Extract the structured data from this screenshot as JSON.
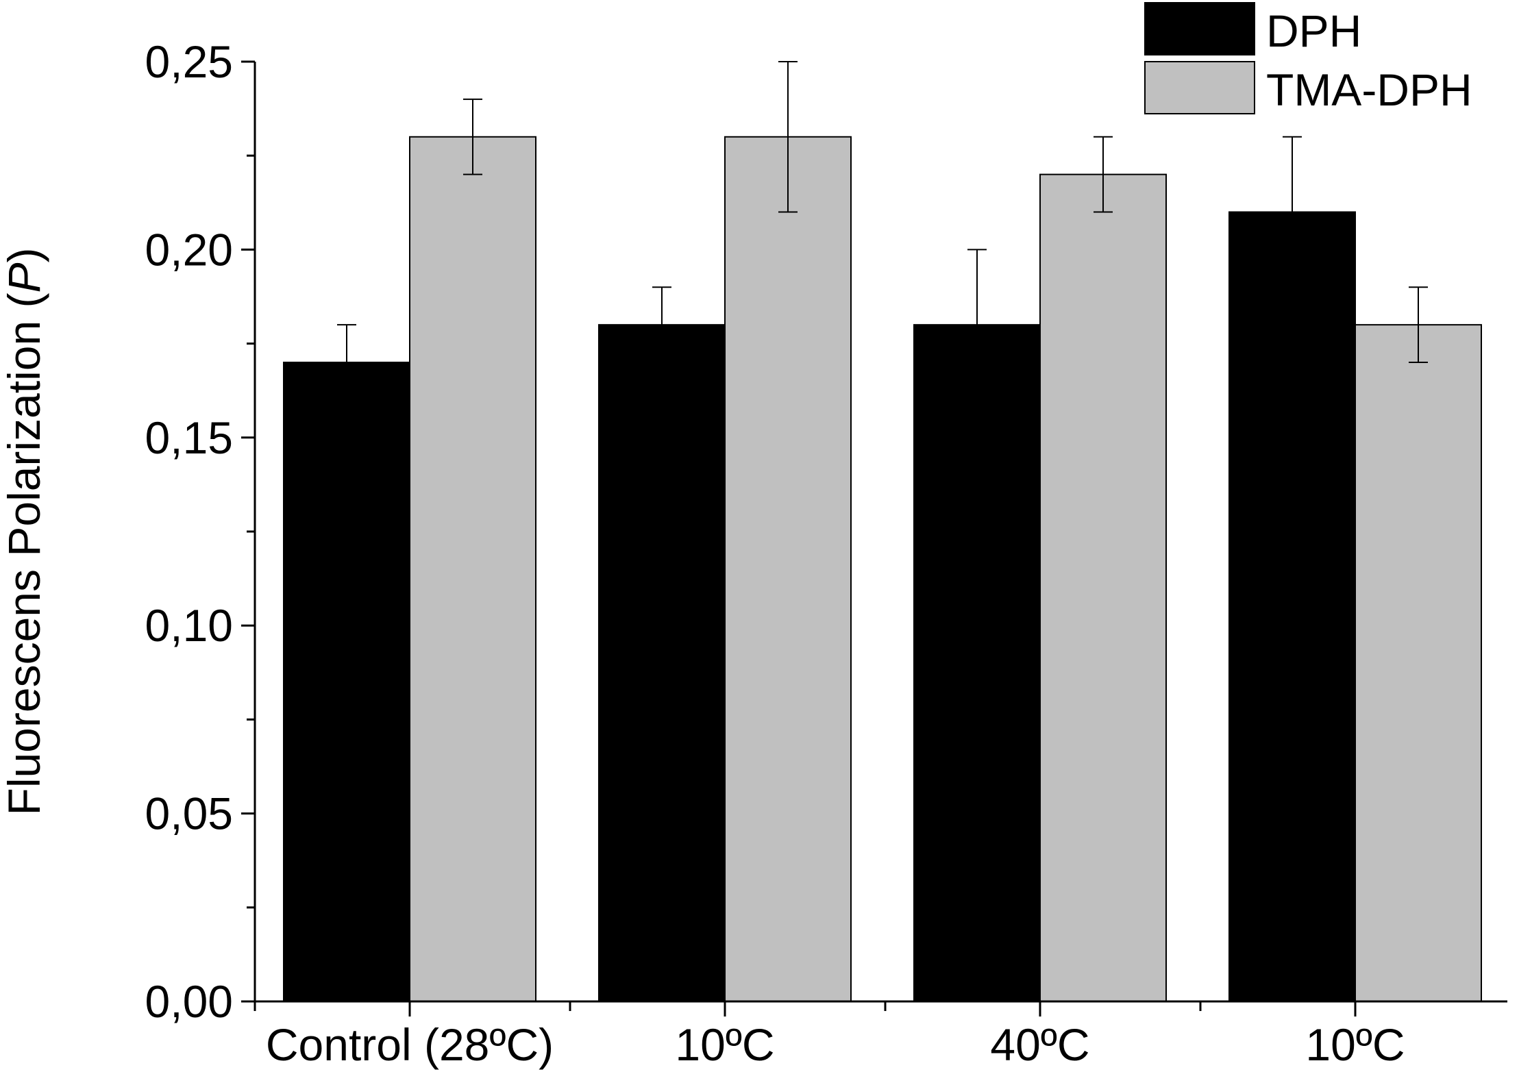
{
  "chart_data": {
    "type": "bar",
    "title": "",
    "xlabel": "",
    "ylabel": "Fluorescens Polarization (",
    "ylabel_symbol": "P",
    "ylabel_close": ")",
    "ylim": [
      0,
      0.25
    ],
    "yticks": [
      {
        "value": 0.0,
        "label": "0,00"
      },
      {
        "value": 0.05,
        "label": "0,05"
      },
      {
        "value": 0.1,
        "label": "0,10"
      },
      {
        "value": 0.15,
        "label": "0,15"
      },
      {
        "value": 0.2,
        "label": "0,20"
      },
      {
        "value": 0.25,
        "label": "0,25"
      }
    ],
    "categories": [
      "Control (28ºC)",
      "10ºC",
      "40ºC",
      "10ºC"
    ],
    "series": [
      {
        "name": "DPH",
        "color": "#000000",
        "values": [
          0.17,
          0.18,
          0.18,
          0.21
        ],
        "errors": [
          0.01,
          0.01,
          0.02,
          0.02
        ]
      },
      {
        "name": "TMA-DPH",
        "color": "#c0c0c0",
        "values": [
          0.23,
          0.23,
          0.22,
          0.18
        ],
        "errors": [
          0.01,
          0.02,
          0.01,
          0.01
        ]
      }
    ],
    "legend_position": "top-right"
  }
}
